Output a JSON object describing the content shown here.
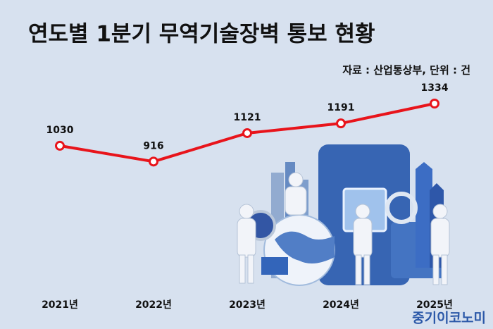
{
  "chart_data": {
    "type": "line",
    "title": "연도별 1분기 무역기술장벽 통보 현황",
    "subtitle": "자료 : 산업통상부, 단위 : 건",
    "categories": [
      "2021년",
      "2022년",
      "2023년",
      "2024년",
      "2025년"
    ],
    "values": [
      1030,
      916,
      1121,
      1191,
      1334
    ],
    "color": "#e8141b",
    "watermark": "중기이코노미"
  }
}
